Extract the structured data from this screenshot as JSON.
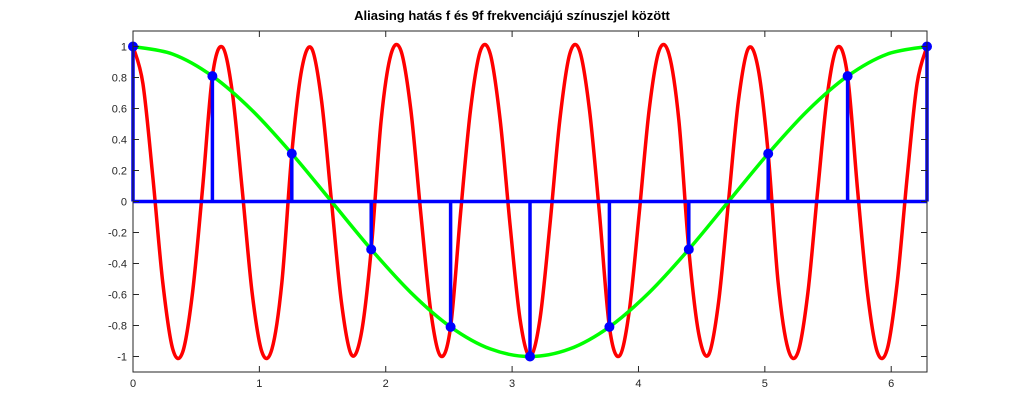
{
  "chart_data": {
    "type": "line",
    "title": "Aliasing hatás f és 9f frekvenciájú színuszjel között",
    "xlabel": "",
    "ylabel": "",
    "xlim": [
      0,
      6.2832
    ],
    "ylim": [
      -1.1,
      1.1
    ],
    "grid": false,
    "x_ticks": [
      "0",
      "1",
      "2",
      "3",
      "4",
      "5",
      "6"
    ],
    "y_ticks": [
      "1",
      "0.8",
      "0.6",
      "0.4",
      "0.2",
      "0",
      "-0.2",
      "-0.4",
      "-0.6",
      "-0.8",
      "-1"
    ],
    "series": [
      {
        "style": "line",
        "color": "#ff0000",
        "x": [
          0,
          0.0785,
          0.1571,
          0.2356,
          0.3142,
          0.3927,
          0.4712,
          0.5498,
          0.6283,
          0.7069,
          0.7854,
          0.8639,
          0.9425,
          1.021,
          1.0996,
          1.1781,
          1.2566,
          1.3352,
          1.4137,
          1.4923,
          1.5708,
          1.6493,
          1.7279,
          1.8064,
          1.885,
          1.9635,
          2.042,
          2.1206,
          2.1991,
          2.2777,
          2.3562,
          2.4347,
          2.5133,
          2.5918,
          2.6704,
          2.7489,
          2.8274,
          2.906,
          2.9845,
          3.0631,
          3.1416,
          3.2201,
          3.2987,
          3.3772,
          3.4558,
          3.5343,
          3.6128,
          3.6914,
          3.7699,
          3.8485,
          3.927,
          4.0055,
          4.0841,
          4.1626,
          4.2412,
          4.3197,
          4.3982,
          4.4768,
          4.5553,
          4.6339,
          4.7124,
          4.7909,
          4.8695,
          4.948,
          5.0265,
          5.1051,
          5.1836,
          5.2622,
          5.3407,
          5.4192,
          5.4978,
          5.5763,
          5.6549,
          5.7334,
          5.8119,
          5.8905,
          5.969,
          6.0476,
          6.1261,
          6.2046,
          6.2832
        ],
        "y": [
          1,
          0.7604,
          0.1564,
          -0.5225,
          -0.9511,
          -0.9724,
          -0.5878,
          0.0785,
          0.809,
          0.9969,
          0.7071,
          0.0785,
          -0.5878,
          -0.9724,
          -0.9511,
          -0.5225,
          0.309,
          0.8526,
          0.9877,
          0.6494,
          0,
          -0.6494,
          -0.9877,
          -0.8526,
          -0.309,
          0.5225,
          0.9511,
          0.9724,
          0.5878,
          -0.0785,
          -0.7071,
          -0.9969,
          -0.809,
          -0.0785,
          0.5878,
          0.9724,
          0.9511,
          0.5225,
          -0.1564,
          -0.7604,
          -1,
          -0.7604,
          -0.1564,
          0.5225,
          0.9511,
          0.9724,
          0.5878,
          -0.0785,
          -0.809,
          -0.9969,
          -0.7071,
          -0.0785,
          0.5878,
          0.9724,
          0.9511,
          0.5225,
          -0.309,
          -0.8526,
          -0.9877,
          -0.6494,
          0,
          0.6494,
          0.9877,
          0.8526,
          0.309,
          -0.5225,
          -0.9511,
          -0.9724,
          -0.5878,
          0.0785,
          0.7071,
          0.9969,
          0.809,
          0.0785,
          -0.5878,
          -0.9724,
          -0.9511,
          -0.5225,
          0.1564,
          0.7604,
          1
        ]
      },
      {
        "style": "line",
        "color": "#00ff00",
        "x": [
          0,
          0.3142,
          0.6283,
          0.9425,
          1.2566,
          1.5708,
          1.885,
          2.1991,
          2.5133,
          2.8274,
          3.1416,
          3.4558,
          3.7699,
          4.0841,
          4.3982,
          4.7124,
          5.0265,
          5.3407,
          5.6549,
          5.969,
          6.2832
        ],
        "y": [
          1,
          0.9511,
          0.809,
          0.5878,
          0.309,
          0,
          -0.309,
          -0.5878,
          -0.809,
          -0.9511,
          -1,
          -0.9511,
          -0.809,
          -0.5878,
          -0.309,
          0,
          0.309,
          0.5878,
          0.809,
          0.9511,
          1
        ]
      },
      {
        "style": "stem",
        "color": "#0000ff",
        "x": [
          0,
          0.6283,
          1.2566,
          1.885,
          2.5133,
          3.1416,
          3.7699,
          4.3982,
          5.0265,
          5.6549,
          6.2832
        ],
        "y": [
          1,
          0.809,
          0.309,
          -0.309,
          -0.809,
          -1,
          -0.809,
          -0.309,
          0.309,
          0.809,
          1
        ]
      }
    ]
  }
}
